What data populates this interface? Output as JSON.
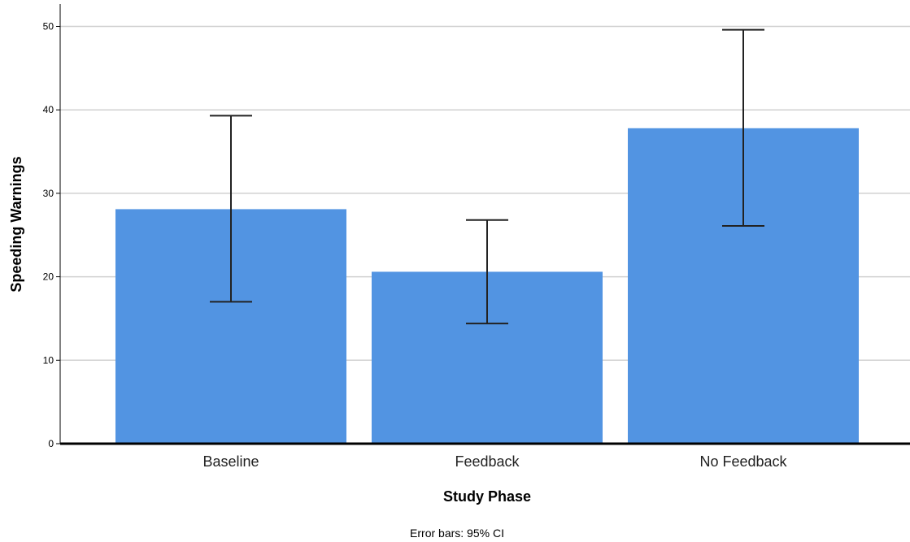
{
  "chart_data": {
    "type": "bar",
    "categories": [
      "Baseline",
      "Feedback",
      "No Feedback"
    ],
    "values": [
      28.1,
      20.6,
      37.8
    ],
    "error_low": [
      17.0,
      14.4,
      26.1
    ],
    "error_high": [
      39.3,
      26.8,
      49.6
    ],
    "xlabel": "Study Phase",
    "ylabel": "Speeding Warnings",
    "ylim": [
      0,
      52
    ],
    "yticks": [
      0,
      10,
      20,
      30,
      40,
      50
    ],
    "grid": true,
    "legend": "none",
    "footnote": "Error bars: 95% CI",
    "colors": {
      "bar": "#5294e2",
      "error_bar": "#222222",
      "grid": "#d0d0d0",
      "axis": "#000000"
    }
  }
}
